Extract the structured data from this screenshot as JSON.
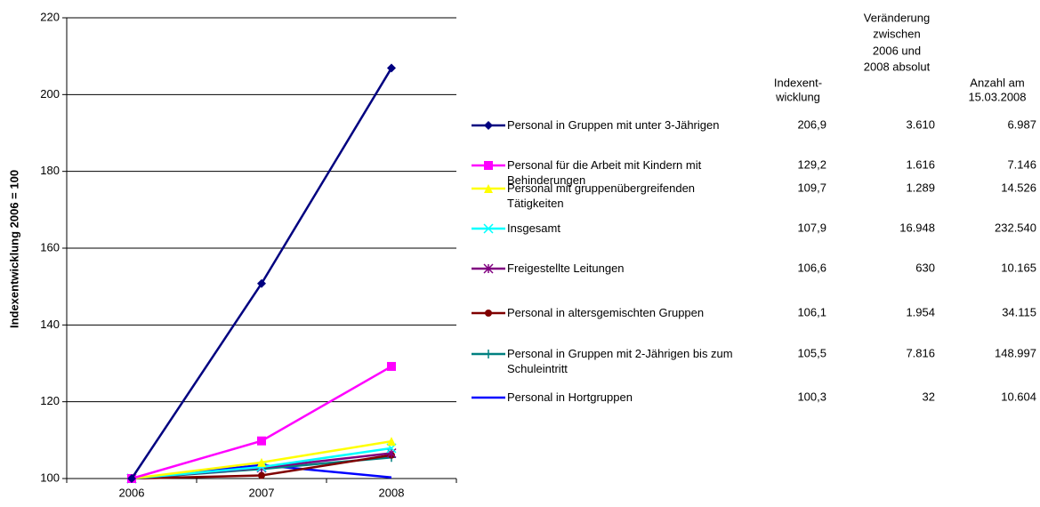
{
  "chart_data": {
    "type": "line",
    "y_label": "Indexentwicklung 2006 = 100",
    "categories": [
      "2006",
      "2007",
      "2008"
    ],
    "ylim": [
      100,
      220
    ],
    "yticks": [
      100,
      120,
      140,
      160,
      180,
      200,
      220
    ],
    "grid": true,
    "series": [
      {
        "name": "Personal in Gruppen mit unter 3-Jährigen",
        "color": "#000080",
        "marker": "diamond",
        "values": [
          100,
          150.8,
          206.9
        ]
      },
      {
        "name": "Personal für die Arbeit mit Kindern mit Behinderungen",
        "color": "#ff00ff",
        "marker": "square",
        "values": [
          100,
          109.8,
          129.2
        ]
      },
      {
        "name": "Personal mit gruppenübergreifenden Tätigkeiten",
        "color": "#ffff00",
        "marker": "triangle",
        "values": [
          100,
          104.2,
          109.7
        ]
      },
      {
        "name": "Insgesamt",
        "color": "#00ffff",
        "marker": "x",
        "values": [
          100,
          103,
          107.9
        ]
      },
      {
        "name": "Freigestellte Leitungen",
        "color": "#800080",
        "marker": "asterisk",
        "values": [
          100,
          102.8,
          106.6
        ]
      },
      {
        "name": "Personal in altersgemischten Gruppen",
        "color": "#800000",
        "marker": "circle",
        "values": [
          100,
          100.8,
          106.1
        ]
      },
      {
        "name": "Personal in Gruppen mit 2-Jährigen bis zum Schuleintritt",
        "color": "#008080",
        "marker": "plus",
        "values": [
          100,
          102.5,
          105.5
        ]
      },
      {
        "name": "Personal in Hortgruppen",
        "color": "#0000ff",
        "marker": "none",
        "values": [
          100,
          103.5,
          100.3
        ]
      }
    ]
  },
  "table": {
    "headers": [
      [
        "Indexent-",
        "wicklung"
      ],
      [
        "Veränderung",
        "zwischen",
        "2006 und",
        "2008 absolut"
      ],
      [
        "Anzahl am",
        "15.03.2008"
      ]
    ],
    "rows": [
      [
        "206,9",
        "3.610",
        "6.987"
      ],
      [
        "129,2",
        "1.616",
        "7.146"
      ],
      [
        "109,7",
        "1.289",
        "14.526"
      ],
      [
        "107,9",
        "16.948",
        "232.540"
      ],
      [
        "106,6",
        "630",
        "10.165"
      ],
      [
        "106,1",
        "1.954",
        "34.115"
      ],
      [
        "105,5",
        "7.816",
        "148.997"
      ],
      [
        "100,3",
        "32",
        "10.604"
      ]
    ]
  }
}
